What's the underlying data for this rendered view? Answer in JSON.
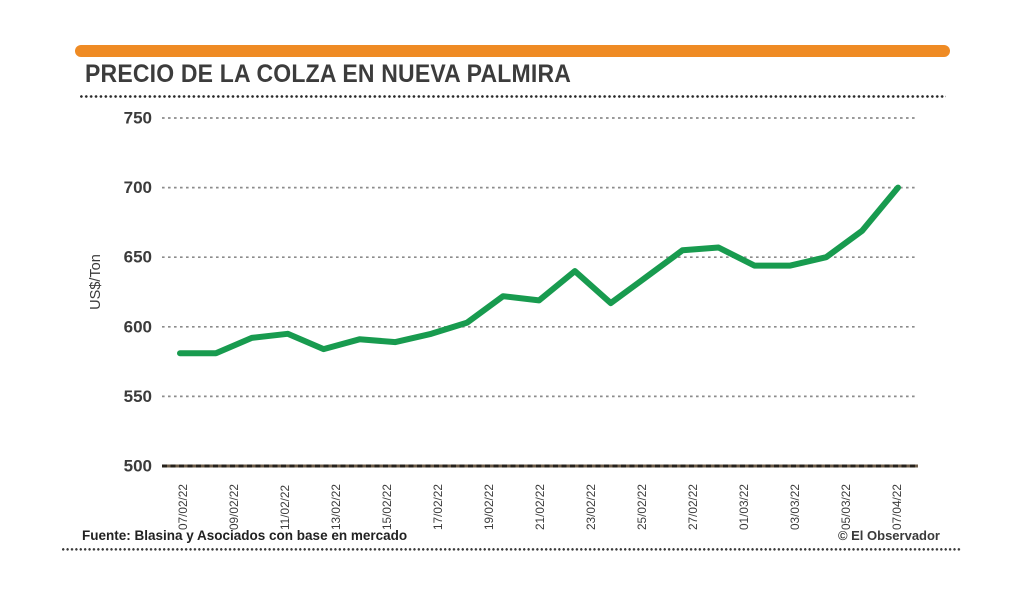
{
  "header": {
    "accent_bar_color": "#EF8B24",
    "title": "PRECIO DE LA COLZA EN NUEVA PALMIRA"
  },
  "chart_data": {
    "type": "line",
    "title": "PRECIO DE LA COLZA EN NUEVA PALMIRA",
    "ylabel": "US$/Ton",
    "ylim": [
      500,
      750
    ],
    "yticks": [
      750,
      700,
      650,
      600,
      550,
      500
    ],
    "grid": "horizontal-dotted",
    "legend": "none",
    "line_color": "#189B4F",
    "x_tick_labels": [
      "07/02/22",
      "09/02/22",
      "11/02/22",
      "13/02/22",
      "15/02/22",
      "17/02/22",
      "19/02/22",
      "21/02/22",
      "23/02/22",
      "25/02/22",
      "27/02/22",
      "01/03/22",
      "03/03/22",
      "05/03/22",
      "07/04/22"
    ],
    "values": [
      581,
      581,
      592,
      595,
      584,
      591,
      589,
      595,
      603,
      622,
      619,
      640,
      617,
      636,
      655,
      657,
      644,
      644,
      650,
      669,
      700
    ]
  },
  "footer": {
    "source": "Fuente: Blasina y Asociados con base en mercado",
    "credit": "© El Observador"
  }
}
